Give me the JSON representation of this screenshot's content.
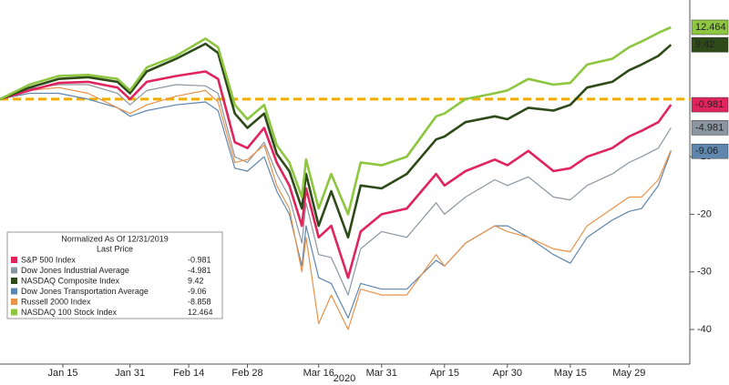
{
  "chart_data": {
    "type": "line",
    "x_label": "2020",
    "legend_title": "Normalized As Of 12/31/2019",
    "legend_subtitle": "Last Price",
    "xlim": [
      0,
      164.5
    ],
    "xticks": [
      {
        "value": 15,
        "label": "Jan 15"
      },
      {
        "value": 31,
        "label": "Jan 31"
      },
      {
        "value": 45,
        "label": "Feb 14"
      },
      {
        "value": 59,
        "label": "Feb 28"
      },
      {
        "value": 76,
        "label": "Mar 16"
      },
      {
        "value": 91,
        "label": "Mar 31"
      },
      {
        "value": 106,
        "label": "Apr 15"
      },
      {
        "value": 121,
        "label": "Apr 30"
      },
      {
        "value": 136,
        "label": "May 15"
      },
      {
        "value": 150,
        "label": "May 29"
      }
    ],
    "ylim": [
      -46,
      17.2
    ],
    "yticks": [
      -40,
      -30,
      -20,
      -10
    ],
    "x": [
      0,
      7,
      14,
      21,
      28,
      31,
      35,
      42,
      49,
      52,
      56,
      59,
      63,
      66,
      69,
      72,
      73,
      76,
      79,
      83,
      86,
      91,
      97,
      104,
      106,
      111,
      118,
      121,
      126,
      132,
      136,
      140,
      146,
      150,
      153,
      157,
      160
    ],
    "series": [
      {
        "name": "S&P 500 Index",
        "color": "#e0245e",
        "end_label": true,
        "label_text": "#ffffff",
        "values": [
          0,
          1.5,
          2.8,
          3,
          2,
          0,
          3,
          4,
          4.8,
          3.5,
          -7.5,
          -8.5,
          -5,
          -11,
          -15,
          -22,
          -15.5,
          -24,
          -22,
          -31,
          -23,
          -20,
          -19,
          -13,
          -15,
          -12.5,
          -10.5,
          -11.5,
          -9,
          -12.5,
          -12,
          -10,
          -8.5,
          -6.5,
          -5.5,
          -4,
          -0.981
        ]
      },
      {
        "name": "Dow Jones Industrial Average",
        "color": "#8c96a0",
        "end_label": true,
        "label_text": "#000000",
        "values": [
          0,
          1.8,
          2.5,
          2.5,
          1,
          -1,
          1.5,
          2.5,
          2.3,
          1,
          -10,
          -11,
          -7.5,
          -13,
          -17,
          -25,
          -18,
          -27,
          -27.5,
          -34,
          -26,
          -23,
          -24,
          -18,
          -20,
          -17,
          -14,
          -15,
          -13.5,
          -17,
          -17.5,
          -15,
          -13,
          -11,
          -10,
          -8.5,
          -4.981
        ]
      },
      {
        "name": "NASDAQ Composite Index",
        "color": "#2e4a18",
        "end_label": true,
        "label_text": "#ffffff",
        "values": [
          0,
          2,
          3.5,
          3.8,
          3,
          1,
          4.8,
          7,
          9.6,
          8,
          -2.5,
          -5,
          -2.5,
          -9.5,
          -12.5,
          -19,
          -13,
          -22,
          -16,
          -24,
          -15,
          -15.5,
          -13,
          -7,
          -6.5,
          -4,
          -3,
          -3.5,
          -1.5,
          -2,
          -1,
          2,
          3,
          5,
          6,
          7.5,
          9.42
        ]
      },
      {
        "name": "Dow Jones Transportation Average",
        "color": "#5f86ad",
        "end_label": true,
        "label_text": "#ffffff",
        "values": [
          0,
          1,
          1,
          0,
          -1.5,
          -3,
          -2,
          -1,
          -0.5,
          -2,
          -12,
          -12.5,
          -10,
          -16,
          -20,
          -29,
          -22,
          -31,
          -32,
          -38,
          -32,
          -33,
          -33,
          -28,
          -29,
          -25,
          -22,
          -22,
          -24,
          -27,
          -28.5,
          -24,
          -21,
          -19.5,
          -19,
          -15,
          -9.06
        ]
      },
      {
        "name": "Russell 2000 Index",
        "color": "#e8924a",
        "end_label": false,
        "label_text": "#ffffff",
        "values": [
          0,
          1.5,
          2,
          1,
          -1.5,
          -2.5,
          -1,
          0.5,
          1.5,
          -0.5,
          -11,
          -10.5,
          -8,
          -15,
          -19,
          -30,
          -24,
          -39,
          -34,
          -40,
          -33,
          -34,
          -34,
          -27,
          -29,
          -25,
          -22,
          -23,
          -24,
          -26,
          -26.5,
          -22,
          -19,
          -17,
          -17,
          -14,
          -8.858
        ]
      },
      {
        "name": "NASDAQ 100 Stock Index",
        "color": "#8dc63f",
        "end_label": true,
        "label_text": "#000000",
        "values": [
          0,
          2.5,
          4,
          4.2,
          3.5,
          1.5,
          5.5,
          7.5,
          10.5,
          9,
          -1,
          -3.5,
          -1,
          -8,
          -11,
          -17,
          -10.5,
          -19,
          -13,
          -20,
          -11,
          -11.5,
          -10,
          -3,
          -2.5,
          0,
          1,
          1.5,
          3.5,
          2.5,
          2.8,
          6,
          7,
          9,
          10,
          11.5,
          12.464
        ]
      }
    ]
  }
}
